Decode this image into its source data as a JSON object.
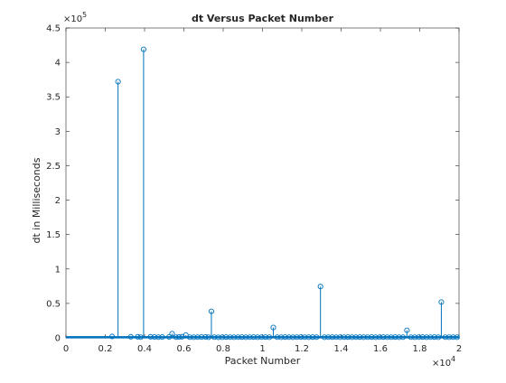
{
  "chart_data": {
    "type": "stem",
    "title": "dt Versus Packet Number",
    "xlabel": "Packet Number",
    "ylabel": "dt in Milliseconds",
    "xlim": [
      0,
      20000
    ],
    "ylim": [
      0,
      450000
    ],
    "x_tick_labels": [
      "0",
      "0.2",
      "0.4",
      "0.6",
      "0.8",
      "1",
      "1.2",
      "1.4",
      "1.6",
      "1.8",
      "2"
    ],
    "y_tick_labels": [
      "0",
      "0.5",
      "1",
      "1.5",
      "2",
      "2.5",
      "3",
      "3.5",
      "4",
      "4.5"
    ],
    "x_exponent_label": "×10",
    "x_exponent_power": "4",
    "y_exponent_label": "×10",
    "y_exponent_power": "5",
    "color": "#0072BD",
    "grid": false,
    "marker": "circle",
    "baseline_points": "dense stems near zero across all packets from 0 to 20000",
    "series": [
      {
        "x": [
          2350,
          3300,
          3650,
          3800,
          4300,
          4500,
          4700,
          4900,
          5250,
          5400,
          5600,
          5750,
          5900,
          6100,
          6300,
          6500,
          6700,
          6900,
          7100,
          7250,
          7400,
          7550,
          7750,
          7950,
          8150,
          8350,
          8550,
          8750,
          8950,
          9150,
          9350,
          9550,
          9750,
          9950,
          10150,
          10350,
          10550,
          10750,
          10950,
          11150,
          11350,
          11550,
          11750,
          11950,
          12150,
          12350,
          12550,
          12750,
          12950,
          13150,
          13350,
          13550,
          13750,
          13950,
          14150,
          14350,
          14550,
          14750,
          14950,
          15150,
          15350,
          15550,
          15750,
          15950,
          16150,
          16350,
          16550,
          16750,
          16950,
          17150,
          17350,
          17550,
          17750,
          17950,
          18150,
          18350,
          18550,
          18750,
          18950,
          19100,
          19300,
          19500,
          19700,
          19900
        ],
        "y": [
          2000,
          1500,
          1500,
          1000,
          1500,
          1200,
          1000,
          1200,
          1400,
          6000,
          1000,
          1200,
          1500,
          4000,
          1000,
          900,
          1000,
          1200,
          1300,
          900,
          38500,
          1000,
          800,
          900,
          1100,
          1000,
          900,
          1000,
          1100,
          900,
          1000,
          1100,
          900,
          1000,
          1100,
          900,
          15000,
          1000,
          900,
          1100,
          1000,
          900,
          1000,
          1100,
          1000,
          900,
          1100,
          1000,
          74500,
          900,
          1000,
          1100,
          1000,
          900,
          1000,
          1100,
          900,
          1000,
          1100,
          900,
          1000,
          1100,
          900,
          1000,
          1100,
          900,
          1000,
          1100,
          900,
          1000,
          11000,
          1000,
          900,
          1000,
          1100,
          900,
          1000,
          1100,
          900,
          52000,
          1000,
          900,
          1000,
          900
        ]
      },
      {
        "x": [
          2650,
          3950
        ],
        "y": [
          372000,
          419000
        ]
      }
    ]
  }
}
